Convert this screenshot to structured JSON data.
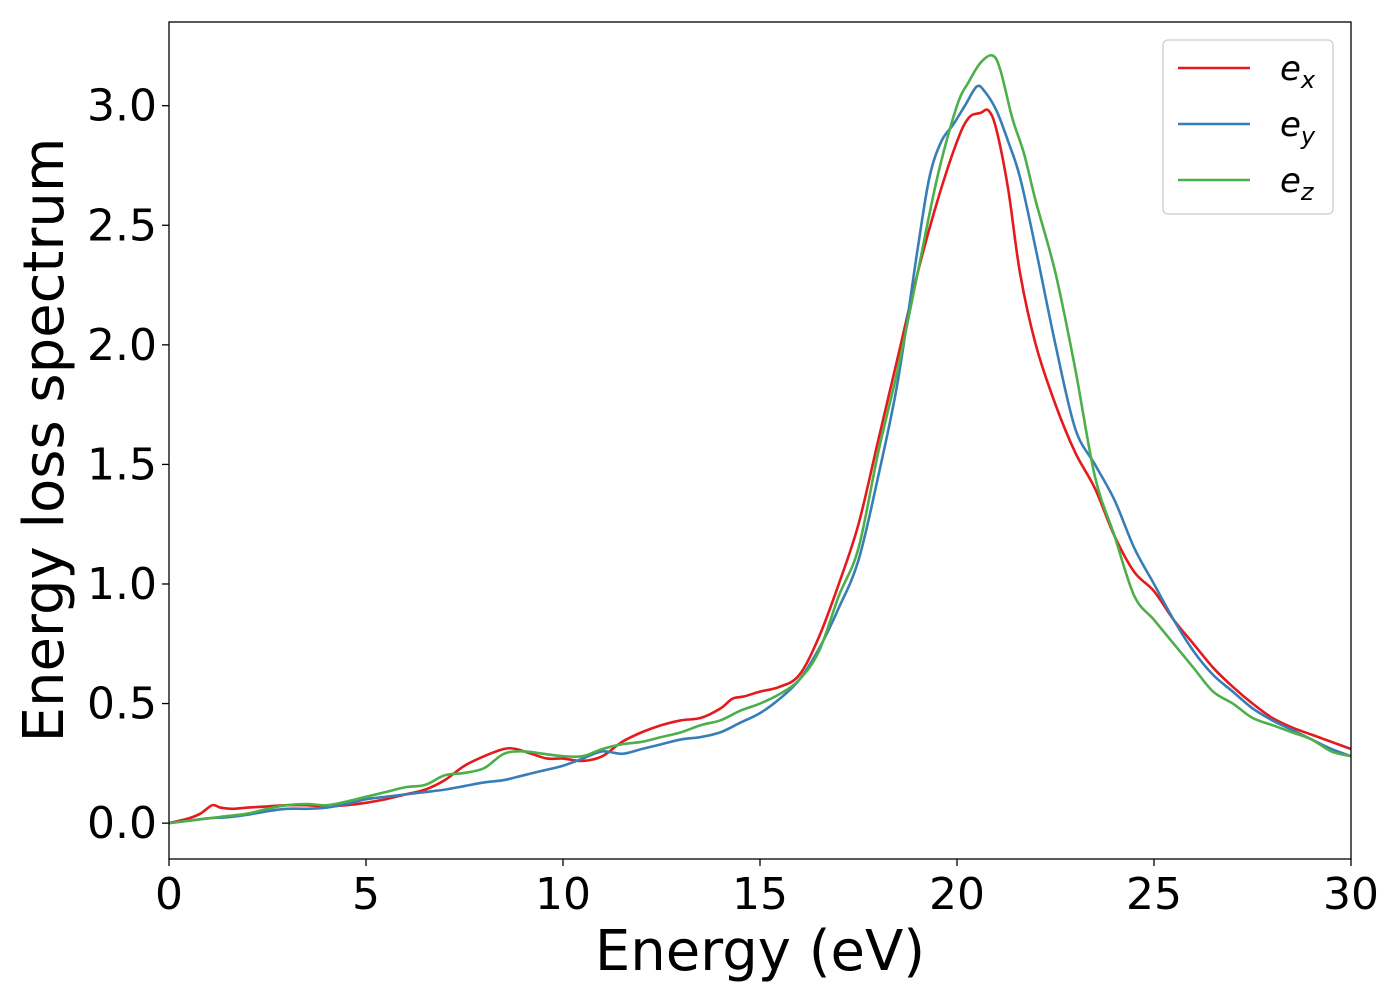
{
  "chart_data": {
    "type": "line",
    "xlabel": "Energy (eV)",
    "ylabel": "Energy loss spectrum",
    "xlim": [
      0,
      30
    ],
    "ylim": [
      -0.15,
      3.35
    ],
    "xticks": [
      0,
      5,
      10,
      15,
      20,
      25,
      30
    ],
    "xtick_labels": [
      "0",
      "5",
      "10",
      "15",
      "20",
      "25",
      "30"
    ],
    "yticks": [
      0.0,
      0.5,
      1.0,
      1.5,
      2.0,
      2.5,
      3.0
    ],
    "ytick_labels": [
      "0.0",
      "0.5",
      "1.0",
      "1.5",
      "2.0",
      "2.5",
      "3.0"
    ],
    "grid": false,
    "legend_position": "top-right",
    "series": [
      {
        "name": "e_x",
        "legend_base": "e",
        "legend_sub": "x",
        "color": "#e41a1c",
        "x": [
          0,
          0.5,
          0.8,
          1.1,
          1.3,
          1.6,
          2.0,
          2.5,
          3.0,
          3.5,
          4.0,
          4.5,
          5.0,
          5.5,
          6.0,
          6.5,
          7.0,
          7.5,
          8.0,
          8.5,
          8.8,
          9.2,
          9.6,
          10.0,
          10.5,
          11.0,
          11.5,
          12.0,
          12.5,
          13.0,
          13.5,
          14.0,
          14.3,
          14.6,
          15.0,
          15.5,
          16.0,
          16.5,
          17.0,
          17.5,
          18.0,
          18.5,
          19.0,
          19.5,
          20.0,
          20.3,
          20.6,
          20.8,
          21.0,
          21.3,
          21.6,
          22.0,
          22.5,
          23.0,
          23.5,
          24.0,
          24.5,
          25.0,
          25.5,
          26.0,
          26.5,
          27.0,
          27.5,
          28.0,
          28.5,
          29.0,
          29.5,
          30.0
        ],
        "y": [
          0.0,
          0.02,
          0.04,
          0.075,
          0.065,
          0.06,
          0.065,
          0.07,
          0.075,
          0.075,
          0.07,
          0.075,
          0.085,
          0.1,
          0.12,
          0.14,
          0.18,
          0.24,
          0.28,
          0.31,
          0.31,
          0.29,
          0.27,
          0.27,
          0.26,
          0.28,
          0.34,
          0.38,
          0.41,
          0.43,
          0.44,
          0.48,
          0.52,
          0.53,
          0.55,
          0.57,
          0.62,
          0.78,
          1.0,
          1.25,
          1.6,
          1.95,
          2.3,
          2.6,
          2.85,
          2.95,
          2.97,
          2.98,
          2.9,
          2.65,
          2.3,
          2.0,
          1.75,
          1.55,
          1.4,
          1.2,
          1.05,
          0.97,
          0.85,
          0.75,
          0.65,
          0.57,
          0.5,
          0.44,
          0.4,
          0.37,
          0.34,
          0.31
        ]
      },
      {
        "name": "e_y",
        "legend_base": "e",
        "legend_sub": "y",
        "color": "#377eb8",
        "x": [
          0,
          0.5,
          1.0,
          1.5,
          2.0,
          2.5,
          3.0,
          3.5,
          4.0,
          4.5,
          5.0,
          5.5,
          6.0,
          6.5,
          7.0,
          7.5,
          8.0,
          8.5,
          9.0,
          9.5,
          10.0,
          10.5,
          11.0,
          11.5,
          12.0,
          12.5,
          13.0,
          13.5,
          14.0,
          14.5,
          15.0,
          15.5,
          16.0,
          16.5,
          17.0,
          17.5,
          18.0,
          18.5,
          19.0,
          19.3,
          19.6,
          19.9,
          20.2,
          20.5,
          20.7,
          21.0,
          21.3,
          21.6,
          22.0,
          22.5,
          23.0,
          23.5,
          24.0,
          24.5,
          25.0,
          25.5,
          26.0,
          26.5,
          27.0,
          27.5,
          28.0,
          28.5,
          29.0,
          29.5,
          30.0
        ],
        "y": [
          0.0,
          0.01,
          0.02,
          0.025,
          0.035,
          0.05,
          0.06,
          0.06,
          0.065,
          0.08,
          0.1,
          0.11,
          0.12,
          0.13,
          0.14,
          0.155,
          0.17,
          0.18,
          0.2,
          0.22,
          0.24,
          0.27,
          0.3,
          0.29,
          0.31,
          0.33,
          0.35,
          0.36,
          0.38,
          0.42,
          0.46,
          0.52,
          0.6,
          0.73,
          0.9,
          1.1,
          1.45,
          1.85,
          2.4,
          2.7,
          2.85,
          2.92,
          3.0,
          3.08,
          3.06,
          2.98,
          2.85,
          2.7,
          2.4,
          2.0,
          1.65,
          1.5,
          1.35,
          1.15,
          1.0,
          0.85,
          0.72,
          0.62,
          0.55,
          0.48,
          0.43,
          0.39,
          0.35,
          0.31,
          0.28
        ]
      },
      {
        "name": "e_z",
        "legend_base": "e",
        "legend_sub": "z",
        "color": "#4daf4a",
        "x": [
          0,
          0.5,
          1.0,
          1.5,
          2.0,
          2.5,
          3.0,
          3.5,
          4.0,
          4.5,
          5.0,
          5.5,
          6.0,
          6.5,
          7.0,
          7.5,
          8.0,
          8.5,
          9.0,
          9.5,
          10.0,
          10.5,
          11.0,
          11.5,
          12.0,
          12.5,
          13.0,
          13.5,
          14.0,
          14.5,
          15.0,
          15.5,
          16.0,
          16.5,
          17.0,
          17.5,
          18.0,
          18.5,
          19.0,
          19.5,
          20.0,
          20.3,
          20.6,
          20.9,
          21.1,
          21.4,
          21.7,
          22.0,
          22.5,
          23.0,
          23.5,
          24.0,
          24.5,
          25.0,
          25.5,
          26.0,
          26.5,
          27.0,
          27.5,
          28.0,
          28.5,
          29.0,
          29.5,
          30.0
        ],
        "y": [
          0.0,
          0.01,
          0.02,
          0.03,
          0.04,
          0.06,
          0.075,
          0.08,
          0.075,
          0.09,
          0.11,
          0.13,
          0.15,
          0.16,
          0.2,
          0.21,
          0.23,
          0.29,
          0.3,
          0.29,
          0.28,
          0.28,
          0.31,
          0.33,
          0.34,
          0.36,
          0.38,
          0.41,
          0.43,
          0.47,
          0.5,
          0.54,
          0.6,
          0.72,
          0.95,
          1.15,
          1.55,
          1.9,
          2.3,
          2.7,
          3.0,
          3.1,
          3.18,
          3.21,
          3.15,
          2.95,
          2.8,
          2.6,
          2.3,
          1.9,
          1.45,
          1.2,
          0.95,
          0.85,
          0.75,
          0.65,
          0.55,
          0.5,
          0.44,
          0.41,
          0.38,
          0.35,
          0.3,
          0.28
        ]
      }
    ]
  }
}
